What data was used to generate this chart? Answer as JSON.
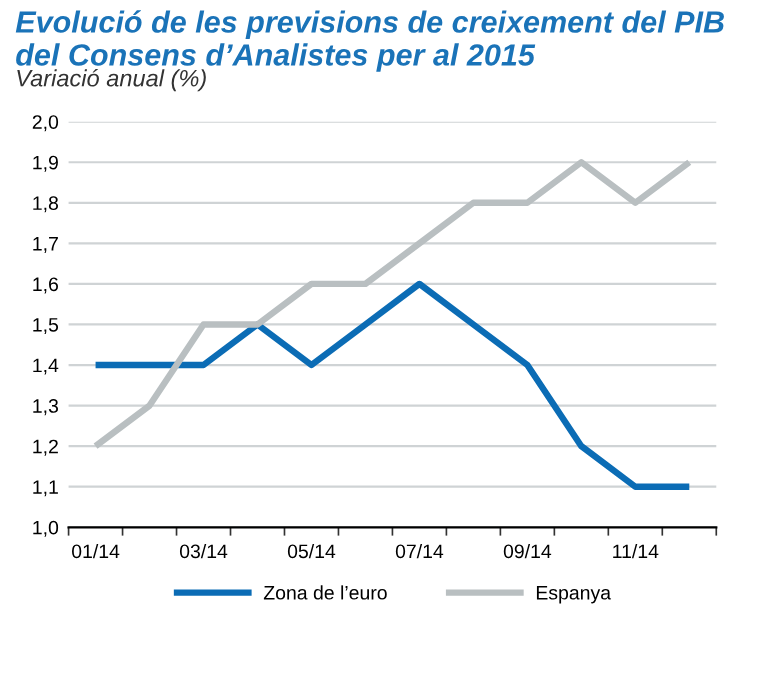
{
  "chart_data": {
    "type": "line",
    "title": "Evolució de les previsions de creixement del PIB\ndel Consens d’Analistes per al 2015",
    "subtitle": "Variació anual (%)",
    "categories": [
      "01/14",
      null,
      "03/14",
      null,
      "05/14",
      null,
      "07/14",
      null,
      "09/14",
      null,
      "11/14",
      null
    ],
    "series": [
      {
        "name": "Zona de l’euro",
        "color": "#0b6cb5",
        "values": [
          1.4,
          1.4,
          1.4,
          1.5,
          1.4,
          1.5,
          1.6,
          1.5,
          1.4,
          1.2,
          1.1,
          1.1
        ]
      },
      {
        "name": "Espanya",
        "color": "#b9bfc1",
        "values": [
          1.2,
          1.3,
          1.5,
          1.5,
          1.6,
          1.6,
          1.7,
          1.8,
          1.8,
          1.9,
          1.8,
          1.9
        ]
      }
    ],
    "ylim": [
      1.0,
      2.0
    ],
    "yticks": [
      {
        "value": 1.0,
        "label": "1,0"
      },
      {
        "value": 1.1,
        "label": "1,1"
      },
      {
        "value": 1.2,
        "label": "1,2"
      },
      {
        "value": 1.3,
        "label": "1,3"
      },
      {
        "value": 1.4,
        "label": "1,4"
      },
      {
        "value": 1.5,
        "label": "1,5"
      },
      {
        "value": 1.6,
        "label": "1,6"
      },
      {
        "value": 1.7,
        "label": "1,7"
      },
      {
        "value": 1.8,
        "label": "1,8"
      },
      {
        "value": 1.9,
        "label": "1,9"
      },
      {
        "value": 2.0,
        "label": "2,0"
      }
    ],
    "grid": "y",
    "legend": "bottom",
    "marker": "none",
    "line_style": "solid"
  }
}
